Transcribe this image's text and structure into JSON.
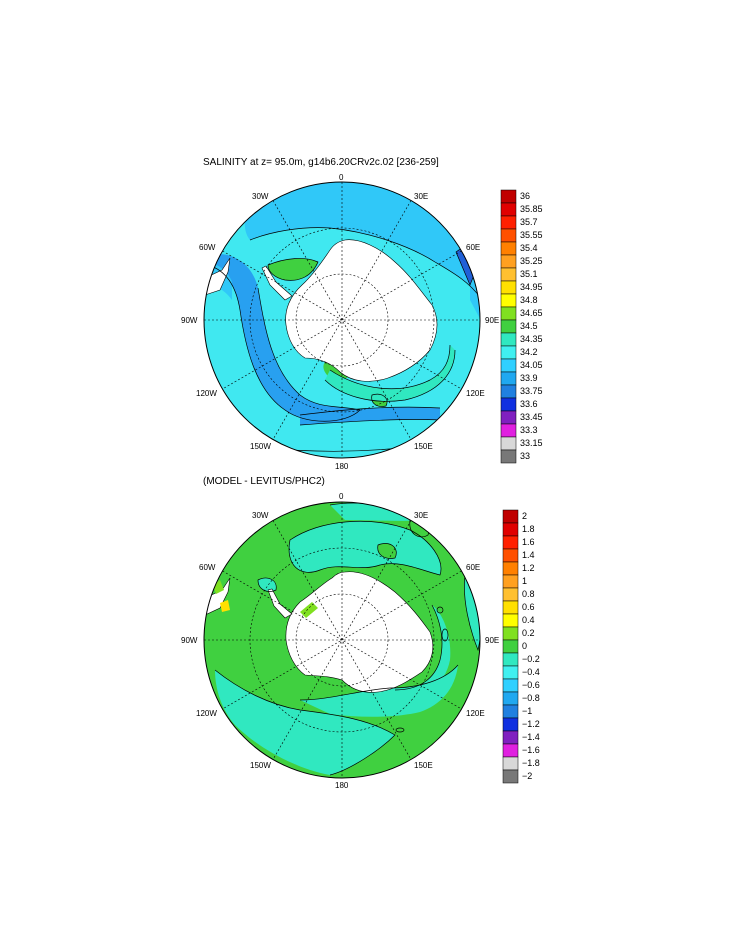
{
  "top_panel": {
    "title": "SALINITY at z=  95.0m, g14b6.20CRv2c.02 [236-259]",
    "lon_labels": [
      "0",
      "30E",
      "60E",
      "90E",
      "120E",
      "150E",
      "180",
      "150W",
      "120W",
      "90W",
      "60W",
      "30W"
    ],
    "colorbar": {
      "labels": [
        "36",
        "35.85",
        "35.7",
        "35.55",
        "35.4",
        "35.25",
        "35.1",
        "34.95",
        "34.8",
        "34.65",
        "34.5",
        "34.35",
        "34.2",
        "34.05",
        "33.9",
        "33.75",
        "33.6",
        "33.45",
        "33.3",
        "33.15",
        "33"
      ],
      "colors": [
        "#c00000",
        "#e00000",
        "#ff2000",
        "#ff5000",
        "#ff8000",
        "#ffa020",
        "#ffc030",
        "#ffe000",
        "#ffff00",
        "#80e020",
        "#40d040",
        "#30e8c0",
        "#40f0f0",
        "#30d0ff",
        "#20a8f0",
        "#2080e0",
        "#1030e0",
        "#8020c0",
        "#e020e0",
        "#d8d8d8",
        "#787878"
      ]
    }
  },
  "bottom_panel": {
    "title": "(MODEL - LEVITUS/PHC2)",
    "lon_labels": [
      "0",
      "30E",
      "60E",
      "90E",
      "120E",
      "150E",
      "180",
      "150W",
      "120W",
      "90W",
      "60W",
      "30W"
    ],
    "colorbar": {
      "labels": [
        "2",
        "1.8",
        "1.6",
        "1.4",
        "1.2",
        "1",
        "0.8",
        "0.6",
        "0.4",
        "0.2",
        "0",
        "−0.2",
        "−0.4",
        "−0.6",
        "−0.8",
        "−1",
        "−1.2",
        "−1.4",
        "−1.6",
        "−1.8",
        "−2"
      ],
      "colors": [
        "#c00000",
        "#e00000",
        "#ff2000",
        "#ff5000",
        "#ff8000",
        "#ffa020",
        "#ffc030",
        "#ffe000",
        "#ffff00",
        "#80e020",
        "#40d040",
        "#30e8c0",
        "#40f0f0",
        "#30d0ff",
        "#20a8f0",
        "#2080e0",
        "#1030e0",
        "#8020c0",
        "#e020e0",
        "#d8d8d8",
        "#787878"
      ]
    }
  }
}
